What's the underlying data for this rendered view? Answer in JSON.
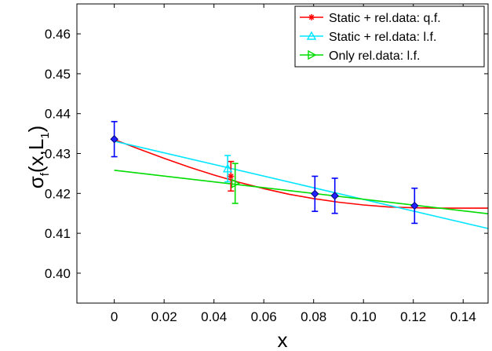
{
  "chart_data": {
    "type": "scatter",
    "xlabel": "x",
    "ylabel_main": "σ",
    "ylabel_sub_f": "f",
    "ylabel_args": "(x,L",
    "ylabel_sub_1": "1",
    "ylabel_close": ")",
    "xlim": [
      -0.015,
      0.15
    ],
    "ylim": [
      0.3925,
      0.4675
    ],
    "xticks": [
      0,
      0.02,
      0.04,
      0.06,
      0.08,
      0.1,
      0.12,
      0.14
    ],
    "xtick_labels": [
      "0",
      "0.02",
      "0.04",
      "0.06",
      "0.08",
      "0.10",
      "0.12",
      "0.14"
    ],
    "yticks": [
      0.4,
      0.41,
      0.42,
      0.43,
      0.44,
      0.45,
      0.46
    ],
    "ytick_labels": [
      "0.40",
      "0.41",
      "0.42",
      "0.43",
      "0.44",
      "0.45",
      "0.46"
    ],
    "data_points": {
      "name": "data",
      "color": "#0000ff",
      "x": [
        0,
        0.0805,
        0.0885,
        0.1205
      ],
      "y": [
        0.4336,
        0.4199,
        0.4194,
        0.4169
      ],
      "err": [
        0.0044,
        0.0044,
        0.0044,
        0.0044
      ]
    },
    "series": [
      {
        "name": "Static + rel.data: q.f.",
        "color": "#ff0000",
        "marker": "*",
        "x": [
          0,
          0.01,
          0.02,
          0.03,
          0.04,
          0.05,
          0.06,
          0.07,
          0.08,
          0.09,
          0.1,
          0.11,
          0.12,
          0.13,
          0.14,
          0.15
        ],
        "y": [
          0.4335,
          0.4311,
          0.4288,
          0.4266,
          0.4246,
          0.4228,
          0.4212,
          0.4198,
          0.4187,
          0.4178,
          0.4171,
          0.4166,
          0.4164,
          0.4163,
          0.4163,
          0.4163
        ],
        "point": {
          "x": 0.0468,
          "y": 0.4243,
          "err": 0.0037
        }
      },
      {
        "name": "Static + rel.data: l.f.",
        "color": "#00e5ff",
        "marker": "triangle-up",
        "x": [
          0,
          0.15
        ],
        "y": [
          0.4331,
          0.4112
        ],
        "point": {
          "x": 0.0455,
          "y": 0.4262,
          "err": 0.0033
        }
      },
      {
        "name": "Only rel.data: l.f.",
        "color": "#00dd00",
        "marker": "triangle-right",
        "x": [
          0,
          0.15
        ],
        "y": [
          0.4258,
          0.4149
        ],
        "point": {
          "x": 0.0485,
          "y": 0.4225,
          "err": 0.005
        }
      }
    ],
    "legend_position": "top-right"
  }
}
